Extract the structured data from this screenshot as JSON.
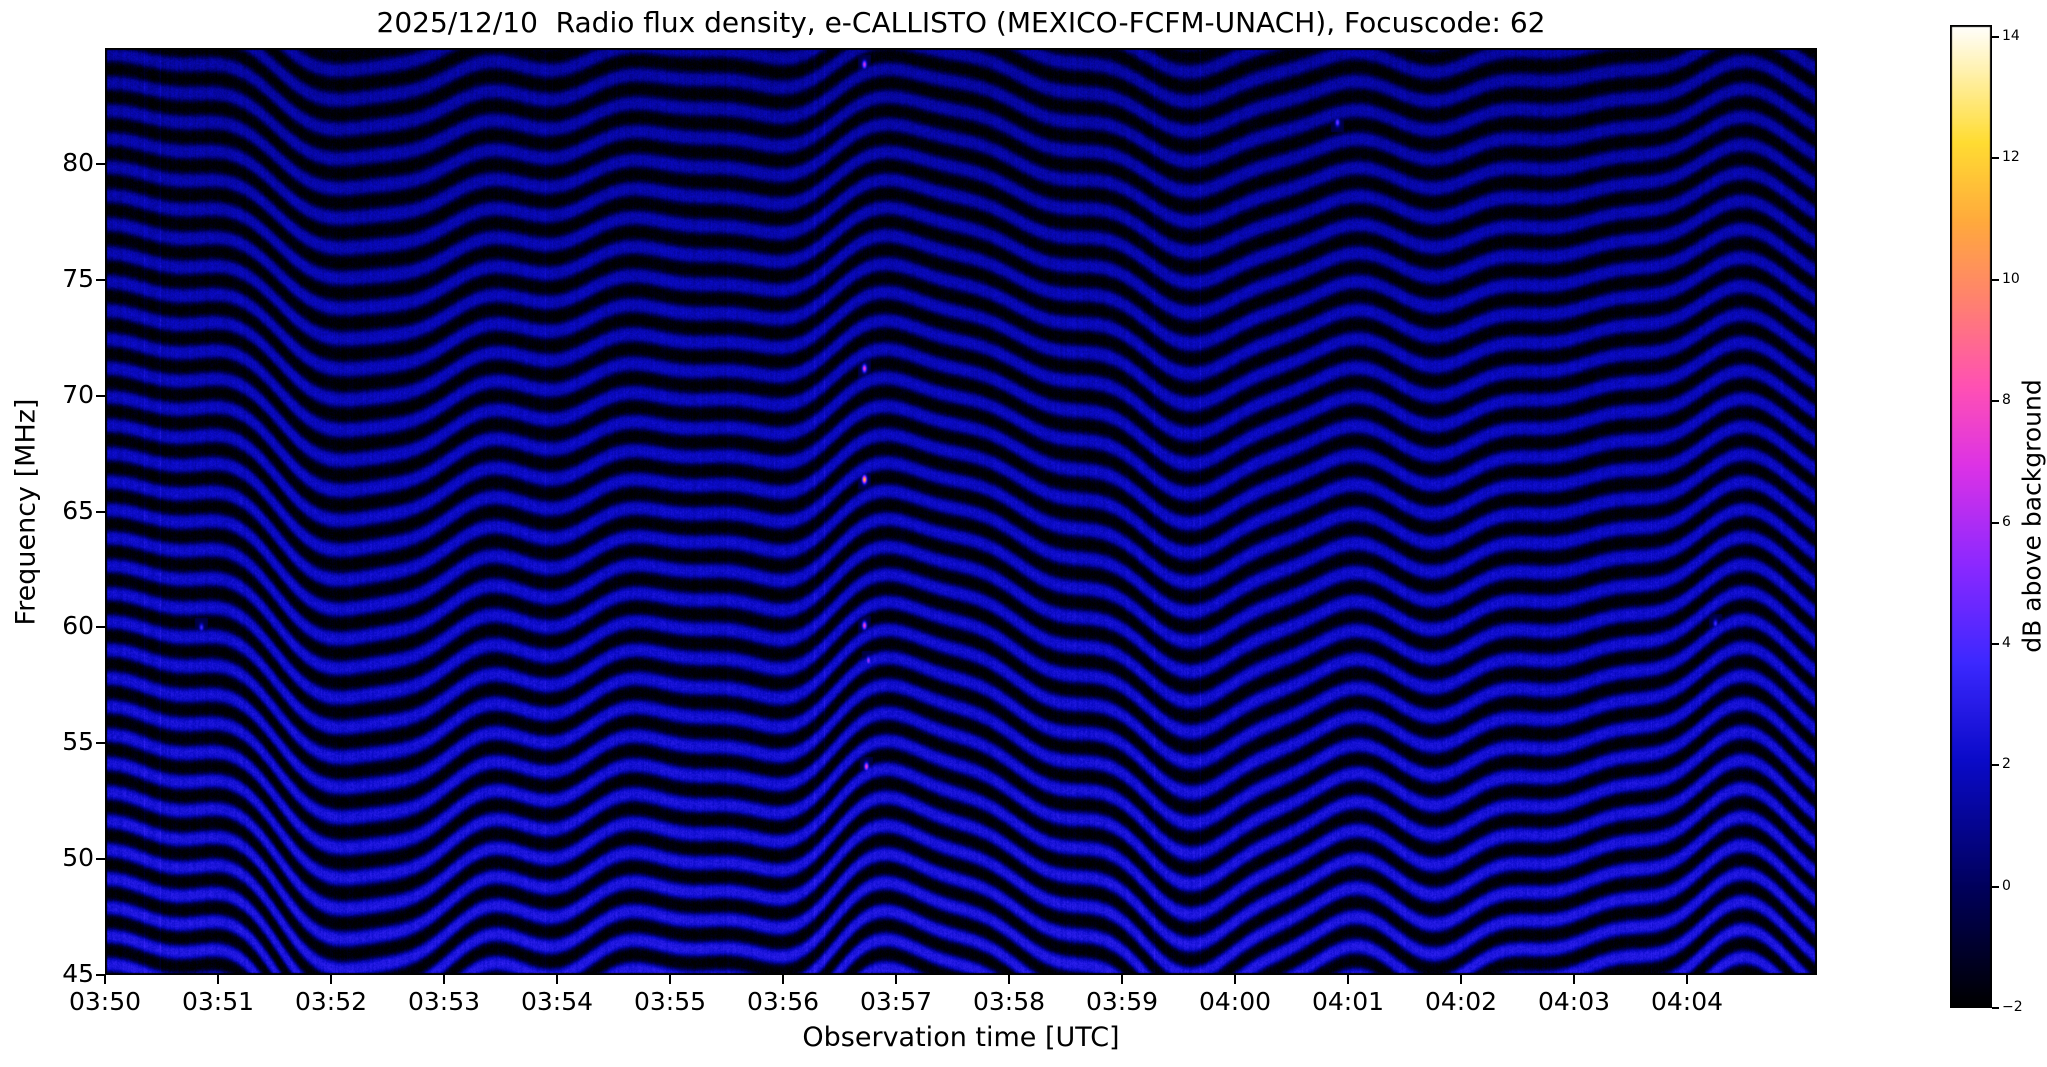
{
  "chart_data": {
    "type": "heatmap",
    "title": "2025/12/10  Radio flux density, e-CALLISTO (MEXICO-FCFM-UNACH), Focuscode: 62",
    "xlabel": "Observation time [UTC]",
    "ylabel": "Frequency [MHz]",
    "x_tick_labels": [
      "03:50",
      "03:51",
      "03:52",
      "03:53",
      "03:54",
      "03:55",
      "03:56",
      "03:57",
      "03:58",
      "03:59",
      "04:00",
      "04:01",
      "04:02",
      "04:03",
      "04:04"
    ],
    "x_range_minutes": [
      0,
      15.15
    ],
    "x_start_time": "03:50",
    "y_tick_values": [
      45,
      50,
      55,
      60,
      65,
      70,
      75,
      80
    ],
    "y_range_mhz": [
      45,
      85
    ],
    "grid": false,
    "legend": "none",
    "colorbar": {
      "label": "dB above background",
      "tick_values": [
        -2,
        0,
        2,
        4,
        6,
        8,
        10,
        12,
        14
      ],
      "value_range_db": [
        -2,
        14.2
      ],
      "colormap": "gnuplot2-style (black - blue - violet - magenta - orange - yellow - white)"
    },
    "background_pattern": {
      "description": "Wavy quasi-horizontal interference fringes over the whole band: dark navy/black troughs and brighter blue crests that undulate with time; stronger diagonal drift near 03:52-03:53 and 03:59-04:01",
      "fringe_period_mhz": 1.25,
      "typical_db_range": [
        -2,
        2.5
      ]
    },
    "bright_features": [
      {
        "time_offset_min": 6.72,
        "freq_mhz": 84.3,
        "peak_db": 7
      },
      {
        "time_offset_min": 6.72,
        "freq_mhz": 71.2,
        "peak_db": 8
      },
      {
        "time_offset_min": 6.72,
        "freq_mhz": 66.4,
        "peak_db": 12
      },
      {
        "time_offset_min": 6.72,
        "freq_mhz": 60.1,
        "peak_db": 8
      },
      {
        "time_offset_min": 6.75,
        "freq_mhz": 58.6,
        "peak_db": 6
      },
      {
        "time_offset_min": 6.73,
        "freq_mhz": 54.0,
        "peak_db": 8
      },
      {
        "time_offset_min": 0.85,
        "freq_mhz": 60.0,
        "peak_db": 4
      },
      {
        "time_offset_min": 14.25,
        "freq_mhz": 60.2,
        "peak_db": 4
      },
      {
        "time_offset_min": 10.9,
        "freq_mhz": 81.8,
        "peak_db": 5
      }
    ]
  }
}
